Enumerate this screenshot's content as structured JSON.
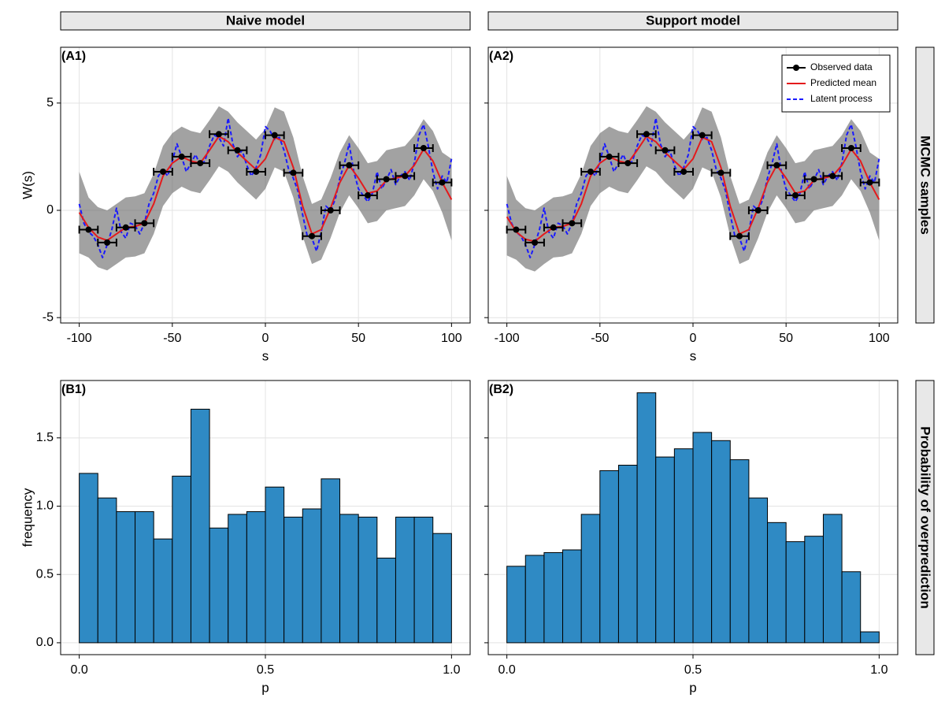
{
  "column_labels": [
    "Naive model",
    "Support model"
  ],
  "row_labels": [
    "MCMC samples",
    "Probability of overprediction"
  ],
  "chart_data": [
    {
      "type": "line",
      "panel_label": "(A1)",
      "xlabel": "s",
      "ylabel": "W(s)",
      "xlim": [
        -110,
        110
      ],
      "ylim": [
        -5.25,
        7.6
      ],
      "xticks": [
        -100,
        -50,
        0,
        50,
        100
      ],
      "yticks": [
        -5,
        0,
        5
      ],
      "ytick_labels": true,
      "grid": true,
      "band": {
        "color": "#555555",
        "x": [
          -100,
          -95,
          -90,
          -85,
          -80,
          -75,
          -70,
          -65,
          -60,
          -55,
          -50,
          -45,
          -40,
          -35,
          -30,
          -25,
          -20,
          -15,
          -10,
          -5,
          0,
          5,
          10,
          15,
          20,
          25,
          30,
          35,
          40,
          45,
          50,
          55,
          60,
          65,
          70,
          75,
          80,
          85,
          90,
          95,
          100
        ],
        "lower": [
          -2.0,
          -2.2,
          -2.65,
          -2.8,
          -2.5,
          -2.2,
          -2.15,
          -2.0,
          -1.1,
          0.2,
          0.8,
          1.1,
          0.9,
          0.8,
          1.4,
          2.05,
          1.8,
          1.3,
          0.9,
          0.5,
          1.0,
          2.0,
          1.8,
          0.6,
          -1.2,
          -2.5,
          -2.3,
          -1.3,
          -0.1,
          0.7,
          0.1,
          -0.6,
          -0.5,
          0.0,
          0.1,
          0.2,
          0.7,
          1.45,
          0.9,
          -0.1,
          -1.4
        ],
        "upper": [
          1.8,
          0.6,
          0.15,
          0.0,
          0.3,
          0.6,
          0.65,
          0.8,
          1.7,
          3.0,
          3.6,
          3.9,
          3.7,
          3.6,
          4.2,
          4.85,
          4.6,
          4.1,
          3.7,
          3.3,
          3.8,
          4.8,
          4.6,
          3.4,
          1.6,
          0.3,
          0.5,
          1.5,
          2.7,
          3.5,
          2.9,
          2.2,
          2.3,
          2.8,
          2.9,
          3.0,
          3.5,
          4.25,
          3.7,
          2.7,
          2.4
        ]
      },
      "series": [
        {
          "color": "#000000",
          "marker": "circle",
          "x": [
            -95,
            -85,
            -75,
            -65,
            -55,
            -45,
            -35,
            -25,
            -15,
            -5,
            5,
            15,
            25,
            35,
            45,
            55,
            65,
            75,
            85,
            95
          ],
          "values": [
            -0.9,
            -1.5,
            -0.8,
            -0.6,
            1.8,
            2.5,
            2.2,
            3.55,
            2.8,
            1.8,
            3.5,
            1.75,
            -1.2,
            0.0,
            2.1,
            0.7,
            1.45,
            1.6,
            2.9,
            1.3
          ],
          "xerr": [
            5,
            5,
            5,
            5,
            5,
            5,
            5,
            5,
            5,
            5,
            5,
            5,
            5,
            5,
            5,
            5,
            5,
            5,
            5,
            5
          ]
        },
        {
          "color": "#e41a1c",
          "x": [
            -100,
            -95,
            -90,
            -85,
            -80,
            -75,
            -70,
            -65,
            -60,
            -55,
            -50,
            -45,
            -40,
            -35,
            -30,
            -25,
            -20,
            -15,
            -10,
            -5,
            0,
            5,
            10,
            15,
            20,
            25,
            30,
            35,
            40,
            45,
            50,
            55,
            60,
            65,
            70,
            75,
            80,
            85,
            90,
            95,
            100
          ],
          "values": [
            -0.1,
            -0.8,
            -1.25,
            -1.4,
            -1.1,
            -0.8,
            -0.75,
            -0.6,
            0.3,
            1.6,
            2.2,
            2.5,
            2.3,
            2.2,
            2.8,
            3.45,
            3.2,
            2.7,
            2.3,
            1.9,
            2.4,
            3.4,
            3.2,
            2.0,
            0.2,
            -1.1,
            -0.9,
            0.1,
            1.3,
            2.1,
            1.5,
            0.8,
            0.9,
            1.4,
            1.5,
            1.6,
            2.1,
            2.85,
            2.3,
            1.3,
            0.5
          ]
        },
        {
          "color": "#1a1aff",
          "dash": true,
          "x": [
            -100,
            -97.5,
            -95,
            -92.5,
            -90,
            -87.5,
            -85,
            -82.5,
            -80,
            -77.5,
            -75,
            -72.5,
            -70,
            -67.5,
            -65,
            -62.5,
            -60,
            -57.5,
            -55,
            -52.5,
            -50,
            -47.5,
            -45,
            -42.5,
            -40,
            -37.5,
            -35,
            -32.5,
            -30,
            -27.5,
            -25,
            -22.5,
            -20,
            -17.5,
            -15,
            -12.5,
            -10,
            -7.5,
            -5,
            -2.5,
            0,
            2.5,
            5,
            7.5,
            10,
            12.5,
            15,
            17.5,
            20,
            22.5,
            25,
            27.5,
            30,
            32.5,
            35,
            37.5,
            40,
            42.5,
            45,
            47.5,
            50,
            52.5,
            55,
            57.5,
            60,
            62.5,
            65,
            67.5,
            70,
            72.5,
            75,
            77.5,
            80,
            82.5,
            85,
            87.5,
            90,
            92.5,
            95,
            97.5,
            100
          ],
          "values": [
            0.3,
            -0.6,
            -1.0,
            -1.2,
            -1.6,
            -2.2,
            -1.6,
            -0.9,
            0.1,
            -1.0,
            -1.3,
            -0.6,
            -0.7,
            -1.1,
            -0.6,
            0.3,
            0.8,
            1.6,
            1.9,
            1.6,
            2.3,
            3.1,
            2.5,
            1.8,
            2.2,
            2.6,
            2.1,
            2.3,
            3.0,
            3.5,
            3.4,
            3.0,
            4.3,
            3.1,
            2.5,
            2.8,
            2.1,
            1.6,
            2.0,
            2.6,
            3.9,
            3.7,
            3.3,
            3.4,
            2.8,
            1.9,
            1.5,
            0.9,
            -0.2,
            -1.2,
            -1.3,
            -1.9,
            -1.0,
            0.2,
            0.0,
            0.5,
            1.5,
            2.2,
            3.1,
            1.8,
            1.0,
            0.7,
            0.4,
            0.8,
            1.8,
            1.0,
            1.4,
            1.9,
            1.2,
            1.6,
            1.8,
            1.4,
            2.2,
            3.5,
            4.0,
            3.0,
            1.8,
            1.0,
            1.6,
            1.3,
            2.4
          ]
        }
      ]
    },
    {
      "type": "line",
      "panel_label": "(A2)",
      "xlabel": "s",
      "xlim": [
        -110,
        110
      ],
      "ylim": [
        -5.25,
        7.6
      ],
      "xticks": [
        -100,
        -50,
        0,
        50,
        100
      ],
      "yticks": [
        -5,
        0,
        5
      ],
      "ytick_labels": false,
      "grid": true,
      "legend": "top right",
      "band": {
        "color": "#555555",
        "x": [
          -100,
          -95,
          -90,
          -85,
          -80,
          -75,
          -70,
          -65,
          -60,
          -55,
          -50,
          -45,
          -40,
          -35,
          -30,
          -25,
          -20,
          -15,
          -10,
          -5,
          0,
          5,
          10,
          15,
          20,
          25,
          30,
          35,
          40,
          45,
          50,
          55,
          60,
          65,
          70,
          75,
          80,
          85,
          90,
          95,
          100
        ],
        "lower": [
          -2.1,
          -2.3,
          -2.7,
          -2.85,
          -2.5,
          -2.2,
          -2.15,
          -2.0,
          -1.1,
          0.2,
          0.8,
          1.1,
          0.9,
          0.8,
          1.4,
          2.05,
          1.8,
          1.3,
          0.9,
          0.5,
          1.0,
          2.0,
          1.8,
          0.6,
          -1.2,
          -2.5,
          -2.3,
          -1.3,
          -0.1,
          0.7,
          0.1,
          -0.6,
          -0.5,
          0.0,
          0.1,
          0.2,
          0.7,
          1.45,
          0.9,
          -0.1,
          -1.4
        ],
        "upper": [
          1.6,
          0.5,
          0.1,
          0.0,
          0.3,
          0.6,
          0.65,
          0.8,
          1.7,
          3.0,
          3.6,
          3.9,
          3.7,
          3.6,
          4.2,
          4.85,
          4.6,
          4.1,
          3.7,
          3.3,
          3.8,
          4.8,
          4.6,
          3.4,
          1.6,
          0.3,
          0.5,
          1.5,
          2.7,
          3.5,
          2.9,
          2.2,
          2.3,
          2.8,
          2.9,
          3.0,
          3.5,
          4.25,
          3.7,
          2.7,
          2.4
        ]
      },
      "series": [
        {
          "name": "Observed data",
          "color": "#000000",
          "marker": "circle",
          "x": [
            -95,
            -85,
            -75,
            -65,
            -55,
            -45,
            -35,
            -25,
            -15,
            -5,
            5,
            15,
            25,
            35,
            45,
            55,
            65,
            75,
            85,
            95
          ],
          "values": [
            -0.9,
            -1.5,
            -0.8,
            -0.6,
            1.8,
            2.5,
            2.2,
            3.55,
            2.8,
            1.8,
            3.5,
            1.75,
            -1.2,
            0.0,
            2.1,
            0.7,
            1.45,
            1.6,
            2.9,
            1.3
          ],
          "xerr": [
            5,
            5,
            5,
            5,
            5,
            5,
            5,
            5,
            5,
            5,
            5,
            5,
            5,
            5,
            5,
            5,
            5,
            5,
            5,
            5
          ]
        },
        {
          "name": "Predicted mean",
          "color": "#e41a1c",
          "x": [
            -100,
            -95,
            -90,
            -85,
            -80,
            -75,
            -70,
            -65,
            -60,
            -55,
            -50,
            -45,
            -40,
            -35,
            -30,
            -25,
            -20,
            -15,
            -10,
            -5,
            0,
            5,
            10,
            15,
            20,
            25,
            30,
            35,
            40,
            45,
            50,
            55,
            60,
            65,
            70,
            75,
            80,
            85,
            90,
            95,
            100
          ],
          "values": [
            -0.3,
            -1.0,
            -1.35,
            -1.45,
            -1.1,
            -0.8,
            -0.75,
            -0.6,
            0.3,
            1.6,
            2.2,
            2.5,
            2.3,
            2.2,
            2.8,
            3.45,
            3.2,
            2.7,
            2.3,
            1.9,
            2.4,
            3.4,
            3.2,
            2.0,
            0.2,
            -1.1,
            -0.9,
            0.1,
            1.3,
            2.1,
            1.5,
            0.8,
            0.9,
            1.4,
            1.5,
            1.6,
            2.1,
            2.85,
            2.3,
            1.3,
            0.5
          ]
        },
        {
          "name": "Latent process",
          "color": "#1a1aff",
          "dash": true,
          "x": [
            -100,
            -97.5,
            -95,
            -92.5,
            -90,
            -87.5,
            -85,
            -82.5,
            -80,
            -77.5,
            -75,
            -72.5,
            -70,
            -67.5,
            -65,
            -62.5,
            -60,
            -57.5,
            -55,
            -52.5,
            -50,
            -47.5,
            -45,
            -42.5,
            -40,
            -37.5,
            -35,
            -32.5,
            -30,
            -27.5,
            -25,
            -22.5,
            -20,
            -17.5,
            -15,
            -12.5,
            -10,
            -7.5,
            -5,
            -2.5,
            0,
            2.5,
            5,
            7.5,
            10,
            12.5,
            15,
            17.5,
            20,
            22.5,
            25,
            27.5,
            30,
            32.5,
            35,
            37.5,
            40,
            42.5,
            45,
            47.5,
            50,
            52.5,
            55,
            57.5,
            60,
            62.5,
            65,
            67.5,
            70,
            72.5,
            75,
            77.5,
            80,
            82.5,
            85,
            87.5,
            90,
            92.5,
            95,
            97.5,
            100
          ],
          "values": [
            0.3,
            -0.6,
            -1.0,
            -1.2,
            -1.6,
            -2.2,
            -1.6,
            -0.9,
            0.1,
            -1.0,
            -1.3,
            -0.6,
            -0.7,
            -1.1,
            -0.6,
            0.3,
            0.8,
            1.6,
            1.9,
            1.6,
            2.3,
            3.1,
            2.5,
            1.8,
            2.2,
            2.6,
            2.1,
            2.3,
            3.0,
            3.5,
            3.4,
            3.0,
            4.3,
            3.1,
            2.5,
            2.8,
            2.1,
            1.6,
            2.0,
            2.6,
            3.9,
            3.7,
            3.3,
            3.4,
            2.8,
            1.9,
            1.5,
            0.9,
            -0.2,
            -1.2,
            -1.3,
            -1.9,
            -1.0,
            0.2,
            0.0,
            0.5,
            1.5,
            2.2,
            3.1,
            1.8,
            1.0,
            0.7,
            0.4,
            0.8,
            1.8,
            1.0,
            1.4,
            1.9,
            1.2,
            1.6,
            1.8,
            1.4,
            2.2,
            3.5,
            4.0,
            3.0,
            1.8,
            1.0,
            1.6,
            1.3,
            2.4
          ]
        }
      ]
    },
    {
      "type": "histogram",
      "panel_label": "(B1)",
      "xlabel": "p",
      "ylabel": "frequency",
      "xlim": [
        -0.05,
        1.05
      ],
      "ylim": [
        -0.087,
        1.92
      ],
      "xticks": [
        {
          "value": 0,
          "label": "0.0"
        },
        0.5,
        {
          "value": 1,
          "label": "1.0"
        }
      ],
      "yticks": [
        {
          "value": 0,
          "label": "0.0"
        },
        0.5,
        {
          "value": 1,
          "label": "1.0"
        },
        1.5
      ],
      "ytick_labels": true,
      "grid": true,
      "color": "#2f8ac4",
      "edgecolor": "#000000",
      "bins": [
        0,
        0.05,
        0.1,
        0.15,
        0.2,
        0.25,
        0.3,
        0.35,
        0.4,
        0.45,
        0.5,
        0.55,
        0.6,
        0.65,
        0.7,
        0.75,
        0.8,
        0.85,
        0.9,
        0.95,
        1.0
      ],
      "values": [
        1.24,
        1.06,
        0.96,
        0.96,
        0.76,
        1.22,
        1.71,
        0.84,
        0.94,
        0.96,
        1.14,
        0.92,
        0.98,
        1.2,
        0.94,
        0.92,
        0.62,
        0.92,
        0.92,
        0.8
      ]
    },
    {
      "type": "histogram",
      "panel_label": "(B2)",
      "xlabel": "p",
      "xlim": [
        -0.05,
        1.05
      ],
      "ylim": [
        -0.087,
        1.92
      ],
      "xticks": [
        {
          "value": 0,
          "label": "0.0"
        },
        0.5,
        {
          "value": 1,
          "label": "1.0"
        }
      ],
      "yticks": [
        {
          "value": 0,
          "label": "0.0"
        },
        0.5,
        {
          "value": 1,
          "label": "1.0"
        },
        1.5
      ],
      "ytick_labels": false,
      "grid": true,
      "color": "#2f8ac4",
      "edgecolor": "#000000",
      "bins": [
        0,
        0.05,
        0.1,
        0.15,
        0.2,
        0.25,
        0.3,
        0.35,
        0.4,
        0.45,
        0.5,
        0.55,
        0.6,
        0.65,
        0.7,
        0.75,
        0.8,
        0.85,
        0.9,
        0.95,
        1.0
      ],
      "values": [
        0.56,
        0.64,
        0.66,
        0.68,
        0.94,
        1.26,
        1.3,
        1.83,
        1.36,
        1.42,
        1.54,
        1.48,
        1.34,
        1.06,
        0.88,
        0.74,
        0.78,
        0.94,
        0.52,
        0.08
      ]
    }
  ]
}
